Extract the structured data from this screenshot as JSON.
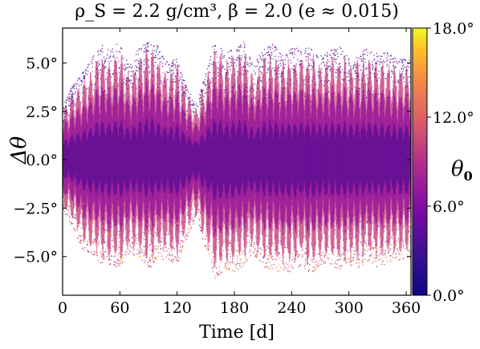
{
  "chart_data": {
    "type": "scatter",
    "title": "ρ_S = 2.2 g/cm³, β = 2.0 (e ≈ 0.015)",
    "xlabel": "Time [d]",
    "ylabel": "Δθ",
    "xlim": [
      0,
      365
    ],
    "ylim": [
      -7.0,
      6.8
    ],
    "x_ticks": [
      0,
      60,
      120,
      180,
      240,
      300,
      360
    ],
    "x_tick_labels": [
      "0",
      "60",
      "120",
      "180",
      "240",
      "300",
      "360"
    ],
    "y_ticks": [
      5.0,
      2.5,
      0.0,
      -2.5,
      -5.0
    ],
    "y_tick_labels": [
      "5.0°",
      "2.5°",
      "0.0°",
      "−2.5°",
      "−5.0°"
    ],
    "colorbar": {
      "label": "θ",
      "label_subscript": "0",
      "range": [
        0.0,
        18.0
      ],
      "ticks": [
        18.0,
        12.0,
        6.0,
        0.0
      ],
      "tick_labels": [
        "18.0°",
        "12.0°",
        "6.0°",
        "0.0°"
      ],
      "colormap": "plasma",
      "colors": [
        "#3a1190",
        "#7c0aa5",
        "#b52f8c",
        "#dd5e66",
        "#f68f44",
        "#fdc128",
        "#f0f921"
      ]
    },
    "envelope_period_days": 6.5,
    "envelope_points": [
      [
        0,
        2.6,
        -2.6
      ],
      [
        10,
        3.6,
        -3.2
      ],
      [
        20,
        4.2,
        -4.4
      ],
      [
        30,
        4.9,
        -4.6
      ],
      [
        40,
        5.7,
        -5.1
      ],
      [
        50,
        5.4,
        -5.2
      ],
      [
        60,
        5.8,
        -5.3
      ],
      [
        70,
        4.6,
        -4.6
      ],
      [
        80,
        5.5,
        -4.8
      ],
      [
        90,
        5.9,
        -5.4
      ],
      [
        100,
        5.6,
        -4.9
      ],
      [
        110,
        4.8,
        -4.9
      ],
      [
        120,
        5.0,
        -5.2
      ],
      [
        130,
        3.6,
        -3.9
      ],
      [
        140,
        2.8,
        -2.9
      ],
      [
        150,
        4.2,
        -4.4
      ],
      [
        160,
        6.1,
        -5.9
      ],
      [
        170,
        5.2,
        -5.4
      ],
      [
        180,
        5.5,
        -5.6
      ],
      [
        190,
        5.8,
        -5.3
      ],
      [
        200,
        4.6,
        -4.6
      ],
      [
        210,
        5.5,
        -5.3
      ],
      [
        220,
        5.7,
        -5.4
      ],
      [
        230,
        5.2,
        -5.6
      ],
      [
        240,
        5.6,
        -5.5
      ],
      [
        250,
        5.4,
        -5.2
      ],
      [
        260,
        5.6,
        -5.6
      ],
      [
        270,
        5.1,
        -5.2
      ],
      [
        280,
        5.4,
        -5.2
      ],
      [
        290,
        5.6,
        -5.4
      ],
      [
        300,
        5.0,
        -5.3
      ],
      [
        310,
        5.3,
        -5.3
      ],
      [
        320,
        5.5,
        -5.0
      ],
      [
        330,
        5.2,
        -5.3
      ],
      [
        340,
        5.3,
        -5.1
      ],
      [
        350,
        5.0,
        -5.0
      ],
      [
        365,
        4.9,
        -4.8
      ]
    ]
  }
}
